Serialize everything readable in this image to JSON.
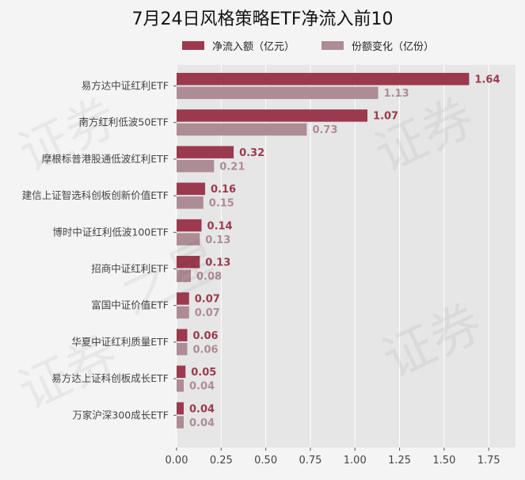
{
  "chart_data": {
    "type": "bar",
    "orientation": "horizontal",
    "title": "7月24日风格策略ETF净流入前10",
    "categories": [
      "易方达中证红利ETF",
      "南方红利低波50ETF",
      "摩根标普港股通低波红利ETF",
      "建信上证智选科创板创新价值ETF",
      "博时中证红利低波100ETF",
      "招商中证红利ETF",
      "富国中证价值ETF",
      "华夏中证红利质量ETF",
      "易方达上证科创板成长ETF",
      "万家沪深300成长ETF"
    ],
    "series": [
      {
        "name": "净流入额（亿元）",
        "color": "#9b3a4e",
        "values": [
          1.64,
          1.07,
          0.32,
          0.16,
          0.14,
          0.13,
          0.07,
          0.06,
          0.05,
          0.04
        ],
        "labels": [
          "1.64",
          "1.07",
          "0.32",
          "0.16",
          "0.14",
          "0.13",
          "0.07",
          "0.06",
          "0.05",
          "0.04"
        ]
      },
      {
        "name": "份额变化（亿份）",
        "color": "#ad8c95",
        "values": [
          1.13,
          0.73,
          0.21,
          0.15,
          0.13,
          0.08,
          0.07,
          0.06,
          0.04,
          0.04
        ],
        "labels": [
          "1.13",
          "0.73",
          "0.21",
          "0.15",
          "0.13",
          "0.08",
          "0.07",
          "0.06",
          "0.04",
          "0.04"
        ]
      }
    ],
    "xlim": [
      0,
      1.9
    ],
    "xticks": [
      "0.00",
      "0.25",
      "0.50",
      "0.75",
      "1.00",
      "1.25",
      "1.50",
      "1.75"
    ],
    "grid": true,
    "legend_position": "top"
  },
  "watermark_text": "证券之星"
}
